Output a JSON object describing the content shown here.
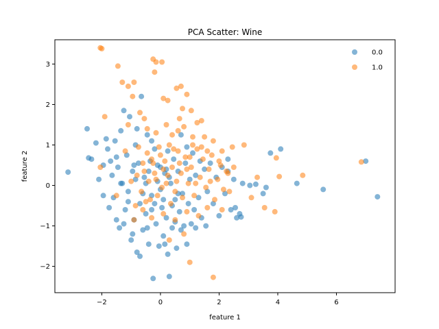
{
  "chart_data": {
    "type": "scatter",
    "title": "PCA Scatter: Wine",
    "xlabel": "feature 1",
    "ylabel": "feature 2",
    "xlim": [
      -3.6,
      8.0
    ],
    "ylim": [
      -2.65,
      3.6
    ],
    "xticks": [
      -2,
      0,
      2,
      4,
      6
    ],
    "yticks": [
      -2,
      -1,
      0,
      1,
      2,
      3
    ],
    "xtick_labels": [
      "−2",
      "0",
      "2",
      "4",
      "6"
    ],
    "ytick_labels": [
      "−2",
      "−1",
      "0",
      "1",
      "2",
      "3"
    ],
    "grid": false,
    "legend_position": "top-right",
    "series": [
      {
        "name": "0.0",
        "color": "#1f77b4",
        "points": [
          [
            -3.15,
            0.33
          ],
          [
            -2.5,
            1.4
          ],
          [
            -2.45,
            0.68
          ],
          [
            -2.35,
            0.65
          ],
          [
            -2.2,
            1.05
          ],
          [
            -2.1,
            0.15
          ],
          [
            -1.95,
            -0.25
          ],
          [
            -1.85,
            1.15
          ],
          [
            -1.8,
            0.9
          ],
          [
            -1.75,
            -0.55
          ],
          [
            -1.7,
            0.6
          ],
          [
            -1.65,
            0.25
          ],
          [
            -1.6,
            -0.3
          ],
          [
            -1.55,
            1.1
          ],
          [
            -1.5,
            -0.85
          ],
          [
            -1.45,
            0.45
          ],
          [
            -1.4,
            -1.05
          ],
          [
            -1.35,
            1.35
          ],
          [
            -1.3,
            0.05
          ],
          [
            -1.25,
            1.85
          ],
          [
            -1.2,
            -0.6
          ],
          [
            -1.15,
            0.75
          ],
          [
            -1.1,
            -0.15
          ],
          [
            -1.05,
            1.7
          ],
          [
            -1.0,
            -1.35
          ],
          [
            -0.95,
            0.35
          ],
          [
            -0.9,
            -0.85
          ],
          [
            -0.85,
            1.0
          ],
          [
            -0.8,
            -1.65
          ],
          [
            -0.75,
            0.55
          ],
          [
            -0.7,
            -0.45
          ],
          [
            -0.65,
            2.2
          ],
          [
            -0.6,
            -1.1
          ],
          [
            -0.55,
            0.2
          ],
          [
            -0.5,
            -0.7
          ],
          [
            -0.45,
            1.25
          ],
          [
            -0.4,
            -1.45
          ],
          [
            -0.35,
            0.6
          ],
          [
            -0.3,
            -0.25
          ],
          [
            -0.25,
            -2.3
          ],
          [
            -0.2,
            0.9
          ],
          [
            -0.15,
            -0.95
          ],
          [
            -0.1,
            0.1
          ],
          [
            -0.05,
            -1.5
          ],
          [
            0.0,
            0.45
          ],
          [
            0.05,
            -0.55
          ],
          [
            0.1,
            -1.25
          ],
          [
            0.15,
            0.3
          ],
          [
            0.2,
            -0.8
          ],
          [
            0.25,
            -1.7
          ],
          [
            0.3,
            -2.25
          ],
          [
            0.35,
            0.05
          ],
          [
            0.4,
            -1.05
          ],
          [
            0.45,
            0.65
          ],
          [
            0.5,
            -0.35
          ],
          [
            0.55,
            -1.55
          ],
          [
            0.6,
            0.35
          ],
          [
            0.65,
            -0.65
          ],
          [
            0.7,
            1.25
          ],
          [
            0.75,
            -0.2
          ],
          [
            0.8,
            -1.0
          ],
          [
            0.85,
            0.55
          ],
          [
            0.9,
            -1.45
          ],
          [
            0.95,
            -0.45
          ],
          [
            1.0,
            0.15
          ],
          [
            1.05,
            -0.95
          ],
          [
            1.1,
            0.8
          ],
          [
            1.15,
            -0.6
          ],
          [
            1.2,
            0.25
          ],
          [
            1.3,
            -0.3
          ],
          [
            1.4,
            -0.8
          ],
          [
            1.5,
            0.4
          ],
          [
            1.6,
            -0.15
          ],
          [
            1.7,
            0.55
          ],
          [
            1.8,
            -0.45
          ],
          [
            1.9,
            0.2
          ],
          [
            2.0,
            -0.75
          ],
          [
            2.1,
            0.45
          ],
          [
            2.2,
            -0.2
          ],
          [
            2.3,
            0.35
          ],
          [
            2.4,
            -0.6
          ],
          [
            2.5,
            0.15
          ],
          [
            2.55,
            -0.55
          ],
          [
            2.6,
            -0.8
          ],
          [
            2.7,
            -0.7
          ],
          [
            2.75,
            -0.78
          ],
          [
            2.3,
            0.65
          ],
          [
            2.8,
            0.05
          ],
          [
            3.05,
            -0.0
          ],
          [
            3.25,
            0.03
          ],
          [
            3.5,
            -0.2
          ],
          [
            3.6,
            -0.05
          ],
          [
            3.75,
            0.8
          ],
          [
            4.1,
            0.9
          ],
          [
            4.65,
            0.05
          ],
          [
            5.55,
            -0.1
          ],
          [
            7.0,
            0.6
          ],
          [
            7.4,
            -0.28
          ],
          [
            -0.7,
            -1.75
          ],
          [
            -0.5,
            0.05
          ],
          [
            -0.3,
            -0.6
          ],
          [
            -0.1,
            0.5
          ],
          [
            0.1,
            -0.35
          ],
          [
            0.3,
            0.2
          ],
          [
            0.5,
            -0.9
          ],
          [
            -0.85,
            0.15
          ],
          [
            -0.6,
            -0.2
          ],
          [
            -0.4,
            0.35
          ],
          [
            0.0,
            -0.1
          ],
          [
            0.2,
            0.4
          ],
          [
            -1.1,
            -0.4
          ],
          [
            -0.9,
            0.5
          ],
          [
            -0.2,
            -0.45
          ],
          [
            0.4,
            -0.5
          ],
          [
            0.6,
            -0.2
          ],
          [
            -1.35,
            0.05
          ],
          [
            -1.5,
            0.7
          ],
          [
            -1.95,
            0.5
          ],
          [
            -1.25,
            -0.95
          ],
          [
            -0.95,
            -1.2
          ],
          [
            -0.45,
            -1.05
          ],
          [
            0.15,
            -1.45
          ],
          [
            0.7,
            -1.1
          ],
          [
            1.2,
            -1.05
          ],
          [
            1.55,
            -1.0
          ],
          [
            -0.8,
            1.4
          ],
          [
            -0.3,
            1.1
          ],
          [
            0.25,
            0.85
          ],
          [
            0.9,
            0.95
          ],
          [
            1.35,
            0.6
          ]
        ]
      },
      {
        "name": "1.0",
        "color": "#ff7f0e",
        "points": [
          [
            -2.05,
            3.4
          ],
          [
            -2.0,
            3.38
          ],
          [
            -1.45,
            2.95
          ],
          [
            -1.3,
            2.55
          ],
          [
            -1.1,
            2.45
          ],
          [
            -0.9,
            2.55
          ],
          [
            -0.95,
            2.2
          ],
          [
            -0.25,
            3.12
          ],
          [
            -0.15,
            3.05
          ],
          [
            0.05,
            3.05
          ],
          [
            -0.2,
            2.8
          ],
          [
            0.55,
            2.4
          ],
          [
            0.7,
            2.45
          ],
          [
            0.9,
            2.25
          ],
          [
            0.1,
            2.15
          ],
          [
            0.25,
            2.1
          ],
          [
            0.75,
            1.9
          ],
          [
            1.05,
            1.85
          ],
          [
            1.25,
            1.55
          ],
          [
            1.4,
            1.6
          ],
          [
            -1.9,
            1.7
          ],
          [
            -1.1,
            1.5
          ],
          [
            -0.7,
            1.8
          ],
          [
            -0.55,
            1.65
          ],
          [
            0.6,
            1.35
          ],
          [
            0.8,
            1.45
          ],
          [
            1.1,
            1.2
          ],
          [
            1.5,
            1.2
          ],
          [
            1.8,
            1.1
          ],
          [
            2.1,
            0.85
          ],
          [
            2.45,
            0.95
          ],
          [
            2.85,
            1.0
          ],
          [
            2.0,
            0.6
          ],
          [
            2.3,
            0.3
          ],
          [
            2.5,
            0.45
          ],
          [
            3.1,
            -0.3
          ],
          [
            3.3,
            0.2
          ],
          [
            3.55,
            -0.55
          ],
          [
            3.9,
            -0.65
          ],
          [
            3.95,
            0.68
          ],
          [
            4.05,
            0.22
          ],
          [
            4.85,
            0.25
          ],
          [
            6.85,
            0.58
          ],
          [
            -2.05,
            0.45
          ],
          [
            -1.5,
            -0.25
          ],
          [
            -1.2,
            0.85
          ],
          [
            -1.0,
            0.1
          ],
          [
            -0.85,
            -0.5
          ],
          [
            -0.75,
            0.95
          ],
          [
            -0.65,
            -0.15
          ],
          [
            -0.55,
            0.35
          ],
          [
            -0.45,
            0.8
          ],
          [
            -0.35,
            -0.35
          ],
          [
            -0.25,
            0.55
          ],
          [
            -0.15,
            0.15
          ],
          [
            -0.05,
            0.95
          ],
          [
            0.05,
            -0.05
          ],
          [
            0.15,
            0.6
          ],
          [
            0.25,
            0.25
          ],
          [
            0.35,
            -0.45
          ],
          [
            0.45,
            0.9
          ],
          [
            0.55,
            0.1
          ],
          [
            0.65,
            0.55
          ],
          [
            0.75,
            -0.3
          ],
          [
            0.85,
            0.7
          ],
          [
            0.95,
            0.05
          ],
          [
            1.05,
            0.45
          ],
          [
            1.15,
            -0.25
          ],
          [
            1.25,
            0.9
          ],
          [
            1.35,
            0.2
          ],
          [
            1.45,
            0.65
          ],
          [
            1.55,
            -0.05
          ],
          [
            1.65,
            0.4
          ],
          [
            1.75,
            0.75
          ],
          [
            1.85,
            -0.35
          ],
          [
            1.95,
            0.15
          ],
          [
            2.05,
            0.5
          ],
          [
            2.15,
            -0.1
          ],
          [
            2.25,
            0.35
          ],
          [
            2.35,
            -0.15
          ],
          [
            1.0,
            -1.9
          ],
          [
            1.8,
            -2.27
          ],
          [
            2.1,
            -0.6
          ],
          [
            1.6,
            -0.55
          ],
          [
            1.3,
            -0.75
          ],
          [
            0.9,
            -0.65
          ],
          [
            0.5,
            -0.85
          ],
          [
            0.1,
            -0.7
          ],
          [
            -0.3,
            -0.8
          ],
          [
            -0.6,
            -0.6
          ],
          [
            -0.9,
            -0.85
          ],
          [
            0.3,
            -1.35
          ],
          [
            0.8,
            -1.2
          ],
          [
            -0.2,
            0.3
          ],
          [
            0.0,
            0.75
          ],
          [
            -0.4,
            0.1
          ],
          [
            -0.1,
            -0.25
          ],
          [
            0.2,
            0.05
          ],
          [
            0.4,
            0.45
          ],
          [
            0.6,
            0.85
          ],
          [
            -0.6,
            0.55
          ],
          [
            -0.3,
            0.65
          ],
          [
            0.3,
            1.0
          ],
          [
            0.7,
            0.3
          ],
          [
            1.0,
            0.7
          ],
          [
            1.2,
            0.05
          ],
          [
            -0.8,
            0.25
          ],
          [
            -0.5,
            -0.4
          ],
          [
            0.1,
            0.4
          ],
          [
            0.5,
            -0.15
          ],
          [
            0.9,
            0.4
          ],
          [
            1.4,
            0.95
          ],
          [
            1.7,
            0.1
          ],
          [
            -0.15,
            1.3
          ],
          [
            0.4,
            1.25
          ],
          [
            -0.45,
            1.4
          ],
          [
            0.2,
            1.5
          ],
          [
            0.65,
            1.65
          ],
          [
            1.1,
            1.0
          ],
          [
            1.6,
            0.85
          ]
        ]
      }
    ]
  }
}
